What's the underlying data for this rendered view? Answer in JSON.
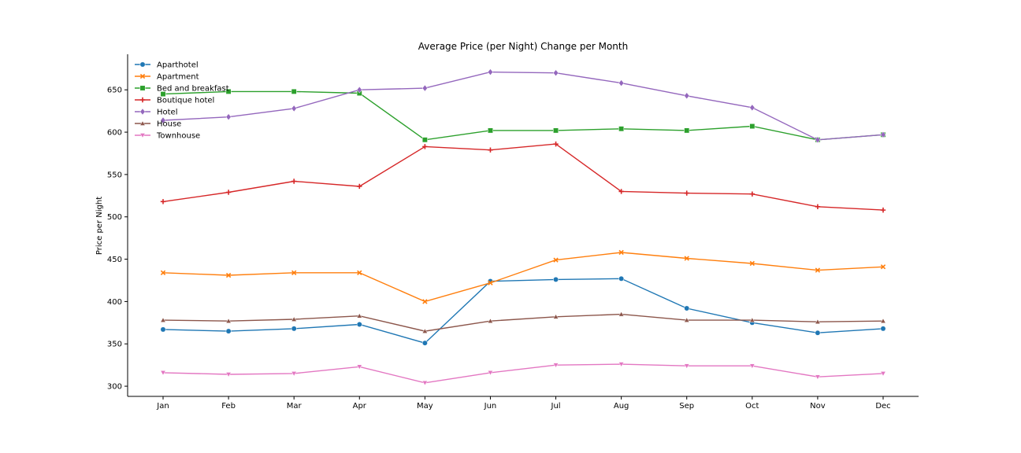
{
  "chart_data": {
    "type": "line",
    "title": "Average Price (per Night) Change per Month",
    "xlabel": "",
    "ylabel": "Price per Night",
    "categories": [
      "Jan",
      "Feb",
      "Mar",
      "Apr",
      "May",
      "Jun",
      "Jul",
      "Aug",
      "Sep",
      "Oct",
      "Nov",
      "Dec"
    ],
    "ylim": [
      288,
      692
    ],
    "yticks": [
      300,
      350,
      400,
      450,
      500,
      550,
      600,
      650
    ],
    "grid": false,
    "legend_position": "top-left",
    "series": [
      {
        "name": "Aparthotel",
        "color": "#1f77b4",
        "marker": "circle",
        "values": [
          367,
          365,
          368,
          373,
          351,
          424,
          426,
          427,
          392,
          375,
          363,
          368
        ]
      },
      {
        "name": "Apartment",
        "color": "#ff7f0e",
        "marker": "x",
        "values": [
          434,
          431,
          434,
          434,
          400,
          422,
          449,
          458,
          451,
          445,
          437,
          441
        ]
      },
      {
        "name": "Bed and breakfast",
        "color": "#2ca02c",
        "marker": "square",
        "values": [
          645,
          648,
          648,
          646,
          591,
          602,
          602,
          604,
          602,
          607,
          591,
          597
        ]
      },
      {
        "name": "Boutique hotel",
        "color": "#d62728",
        "marker": "plus",
        "values": [
          518,
          529,
          542,
          536,
          583,
          579,
          586,
          530,
          528,
          527,
          512,
          508
        ]
      },
      {
        "name": "Hotel",
        "color": "#9467bd",
        "marker": "diamond",
        "values": [
          614,
          618,
          628,
          650,
          652,
          671,
          670,
          658,
          643,
          629,
          591,
          597
        ]
      },
      {
        "name": "House",
        "color": "#8c564b",
        "marker": "triangle-up",
        "values": [
          378,
          377,
          379,
          383,
          365,
          377,
          382,
          385,
          378,
          378,
          376,
          377
        ]
      },
      {
        "name": "Townhouse",
        "color": "#e377c2",
        "marker": "triangle-down",
        "values": [
          316,
          314,
          315,
          323,
          304,
          316,
          325,
          326,
          324,
          324,
          311,
          315
        ]
      }
    ]
  }
}
